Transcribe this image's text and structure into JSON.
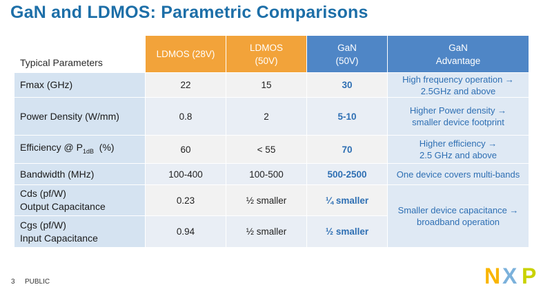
{
  "title": "GaN and LDMOS: Parametric Comparisons",
  "table": {
    "header": {
      "param": "Typical Parameters",
      "ldmos28_line1": "LDMOS (28V)",
      "ldmos50_line1": "LDMOS",
      "ldmos50_line2": "(50V)",
      "gan50_line1": "GaN",
      "gan50_line2": "(50V)",
      "adv_line1": "GaN",
      "adv_line2": "Advantage"
    },
    "rows": [
      {
        "param": "Fmax (GHz)",
        "ldmos28": "22",
        "ldmos50": "15",
        "gan": "30",
        "adv_line1": "High frequency operation →",
        "adv_line2": "2.5GHz and above"
      },
      {
        "param": "Power Density (W/mm)",
        "ldmos28": "0.8",
        "ldmos50": "2",
        "gan": "5-10",
        "adv_line1": "Higher Power density →",
        "adv_line2": "smaller device footprint"
      },
      {
        "param_pre": "Efficiency @ P",
        "param_sub": "1dB",
        "param_post": "  (%)",
        "ldmos28": "60",
        "ldmos50": "< 55",
        "gan": "70",
        "adv_line1": "Higher efficiency →",
        "adv_line2": "2.5 GHz and above"
      },
      {
        "param": "Bandwidth (MHz)",
        "ldmos28": "100-400",
        "ldmos50": "100-500",
        "gan": "500-2500",
        "adv_line1": "One device covers multi-bands"
      },
      {
        "param_line1": "Cds (pf/W)",
        "param_line2": "Output Capacitance",
        "ldmos28": "0.23",
        "ldmos50": "½ smaller",
        "gan": "¼ smaller",
        "adv_line1": "Smaller device capacitance  →",
        "adv_line2": "broadband operation"
      },
      {
        "param_line1": "Cgs (pf/W)",
        "param_line2": "Input Capacitance",
        "ldmos28": "0.94",
        "ldmos50": "½ smaller",
        "gan": "½ smaller"
      }
    ]
  },
  "footer": {
    "page_number": "3",
    "classification": "PUBLIC"
  },
  "logo": {
    "text": "NXP",
    "colors": [
      "#f9b500",
      "#7bb1db",
      "#c9d200"
    ]
  },
  "colors": {
    "title": "#1d6fa8",
    "orange": "#f2a33a",
    "blue": "#4f86c6",
    "gan_text": "#2e6fb3"
  }
}
